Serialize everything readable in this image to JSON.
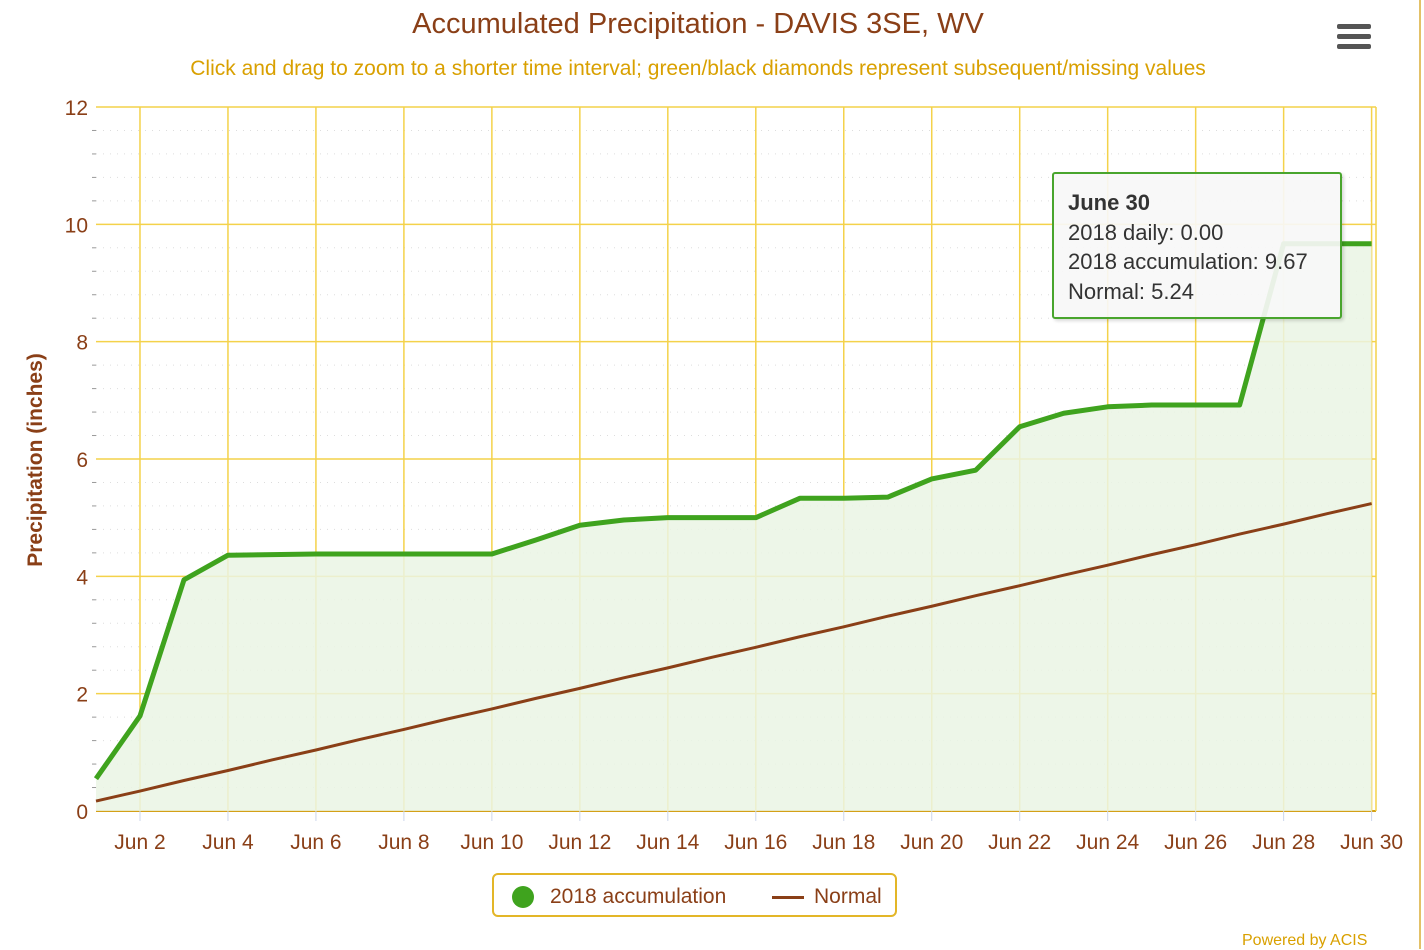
{
  "title": "Accumulated Precipitation - DAVIS 3SE, WV",
  "subtitle": "Click and drag to zoom to a shorter time interval; green/black diamonds represent subsequent/missing values",
  "menu_icon": "hamburger-menu-icon",
  "credit": "Powered by ACIS",
  "tooltip": {
    "date": "June 30",
    "daily": "2018 daily: 0.00",
    "accumulation": "2018 accumulation: 9.67",
    "normal": "Normal: 5.24"
  },
  "legend": {
    "accum": "2018 accumulation",
    "normal": "Normal"
  },
  "colors": {
    "accum": "#3fa31e",
    "fill": "#eaf4e4",
    "normal": "#8a3f17",
    "grid": "#f4d24a",
    "axis_text": "#8a3f17"
  },
  "chart_data": {
    "type": "area",
    "title": "Accumulated Precipitation - DAVIS 3SE, WV",
    "xlabel": "",
    "ylabel": "Precipitation (inches)",
    "ylim": [
      0,
      12
    ],
    "yticks": [
      "0",
      "2",
      "4",
      "6",
      "8",
      "10",
      "12"
    ],
    "x_days": [
      1,
      2,
      3,
      4,
      5,
      6,
      7,
      8,
      9,
      10,
      11,
      12,
      13,
      14,
      15,
      16,
      17,
      18,
      19,
      20,
      21,
      22,
      23,
      24,
      25,
      26,
      27,
      28,
      29,
      30
    ],
    "xtick_labels": [
      "Jun 2",
      "Jun 4",
      "Jun 6",
      "Jun 8",
      "Jun 10",
      "Jun 12",
      "Jun 14",
      "Jun 16",
      "Jun 18",
      "Jun 20",
      "Jun 22",
      "Jun 24",
      "Jun 26",
      "Jun 28",
      "Jun 30"
    ],
    "grid": true,
    "legend_position": "bottom-center",
    "series": [
      {
        "name": "2018 accumulation",
        "type": "area",
        "values": [
          0.55,
          1.62,
          3.94,
          4.36,
          4.37,
          4.38,
          4.38,
          4.38,
          4.38,
          4.38,
          4.62,
          4.87,
          4.96,
          5.0,
          5.0,
          5.0,
          5.33,
          5.33,
          5.35,
          5.66,
          5.81,
          6.55,
          6.78,
          6.89,
          6.92,
          6.92,
          6.92,
          9.67,
          9.67,
          9.67
        ]
      },
      {
        "name": "Normal",
        "type": "line",
        "values": [
          0.17,
          0.34,
          0.52,
          0.69,
          0.87,
          1.04,
          1.22,
          1.39,
          1.57,
          1.74,
          1.92,
          2.09,
          2.27,
          2.44,
          2.62,
          2.79,
          2.97,
          3.14,
          3.32,
          3.49,
          3.67,
          3.84,
          4.02,
          4.19,
          4.37,
          4.54,
          4.72,
          4.89,
          5.07,
          5.24
        ]
      }
    ]
  }
}
